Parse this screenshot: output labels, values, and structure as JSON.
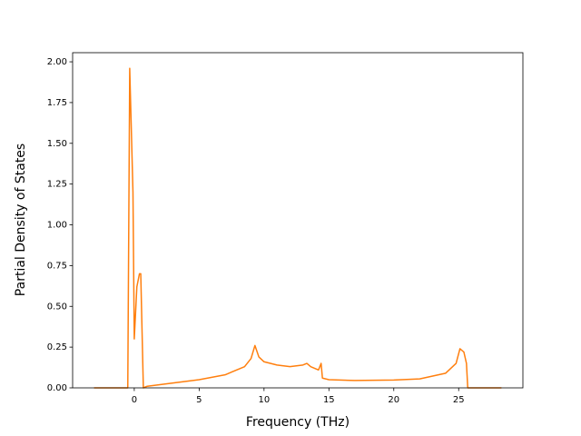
{
  "chart_data": {
    "type": "line",
    "xlabel": "Frequency (THz)",
    "ylabel": "Partial Density of States",
    "xlim": [
      -4.75,
      29.95
    ],
    "ylim": [
      0,
      2.056
    ],
    "xticks": [
      0,
      5,
      10,
      15,
      20,
      25
    ],
    "yticks": [
      {
        "value": 0,
        "label": "0.00"
      },
      {
        "value": 0.25,
        "label": "0.25"
      },
      {
        "value": 0.5,
        "label": "0.50"
      },
      {
        "value": 0.75,
        "label": "0.75"
      },
      {
        "value": 1,
        "label": "1.00"
      },
      {
        "value": 1.25,
        "label": "1.25"
      },
      {
        "value": 1.5,
        "label": "1.50"
      },
      {
        "value": 1.75,
        "label": "1.75"
      },
      {
        "value": 2,
        "label": "2.00"
      }
    ],
    "x": [
      -3.1,
      -0.5,
      -0.35,
      -0.1,
      0.0,
      0.2,
      0.4,
      0.5,
      0.7,
      1.0,
      3,
      5,
      7,
      8.5,
      9.0,
      9.3,
      9.6,
      10,
      11,
      12,
      13,
      13.3,
      13.6,
      14.2,
      14.4,
      14.5,
      15,
      17,
      20,
      22,
      24,
      24.8,
      25.1,
      25.4,
      25.6,
      25.7,
      28.3
    ],
    "series": [
      {
        "color": "#ff7f0e",
        "values": [
          0,
          0,
          1.96,
          1.2,
          0.3,
          0.62,
          0.7,
          0.7,
          0.0,
          0.01,
          0.03,
          0.05,
          0.08,
          0.13,
          0.18,
          0.26,
          0.19,
          0.16,
          0.14,
          0.13,
          0.14,
          0.15,
          0.13,
          0.11,
          0.15,
          0.06,
          0.05,
          0.045,
          0.048,
          0.055,
          0.09,
          0.15,
          0.24,
          0.22,
          0.15,
          0.0,
          0
        ]
      }
    ]
  }
}
